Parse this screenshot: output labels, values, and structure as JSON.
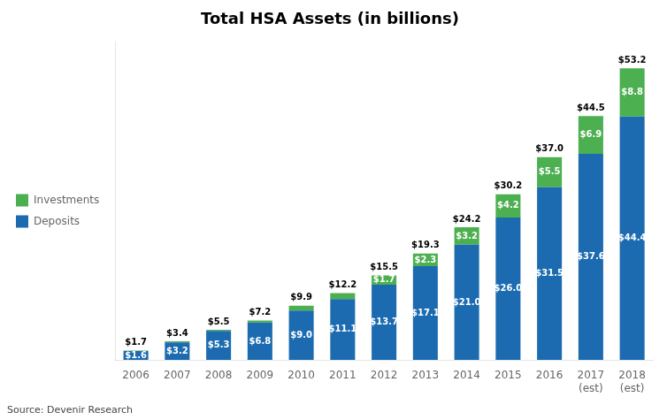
{
  "chart_data": {
    "type": "bar",
    "title": "Total HSA Assets (in billions)",
    "categories": [
      "2006",
      "2007",
      "2008",
      "2009",
      "2010",
      "2011",
      "2012",
      "2013",
      "2014",
      "2015",
      "2016",
      "2017\n(est)",
      "2018\n(est)"
    ],
    "series": [
      {
        "name": "Deposits",
        "color": "#1C6BB0",
        "values": [
          1.6,
          3.2,
          5.3,
          6.8,
          9.0,
          11.1,
          13.7,
          17.1,
          21.0,
          26.0,
          31.5,
          37.6,
          44.4
        ],
        "value_labels": [
          "$1.6",
          "$3.2",
          "$5.3",
          "$6.8",
          "$9.0",
          "$11.1",
          "$13.7",
          "$17.1",
          "$21.0",
          "$26.0",
          "$31.5",
          "$37.6",
          "$44.4"
        ]
      },
      {
        "name": "Investments",
        "color": "#4CAF50",
        "values": [
          0.1,
          0.2,
          0.2,
          0.4,
          0.9,
          1.1,
          1.7,
          2.3,
          3.2,
          4.2,
          5.5,
          6.9,
          8.8
        ],
        "value_labels": [
          null,
          null,
          null,
          null,
          null,
          null,
          "$1.7",
          "$2.3",
          "$3.2",
          "$4.2",
          "$5.5",
          "$6.9",
          "$8.8"
        ]
      }
    ],
    "total_labels": [
      "$1.7",
      "$3.4",
      "$5.5",
      "$7.2",
      "$9.9",
      "$12.2",
      "$15.5",
      "$19.3",
      "$24.2",
      "$30.2",
      "$37.0",
      "$44.5",
      "$53.2"
    ],
    "source": "Source: Devenir Research",
    "stacked": true,
    "data_labels": true,
    "ylim": [
      0,
      58
    ],
    "tick_labels": "x",
    "grid": false,
    "legend": "left"
  }
}
